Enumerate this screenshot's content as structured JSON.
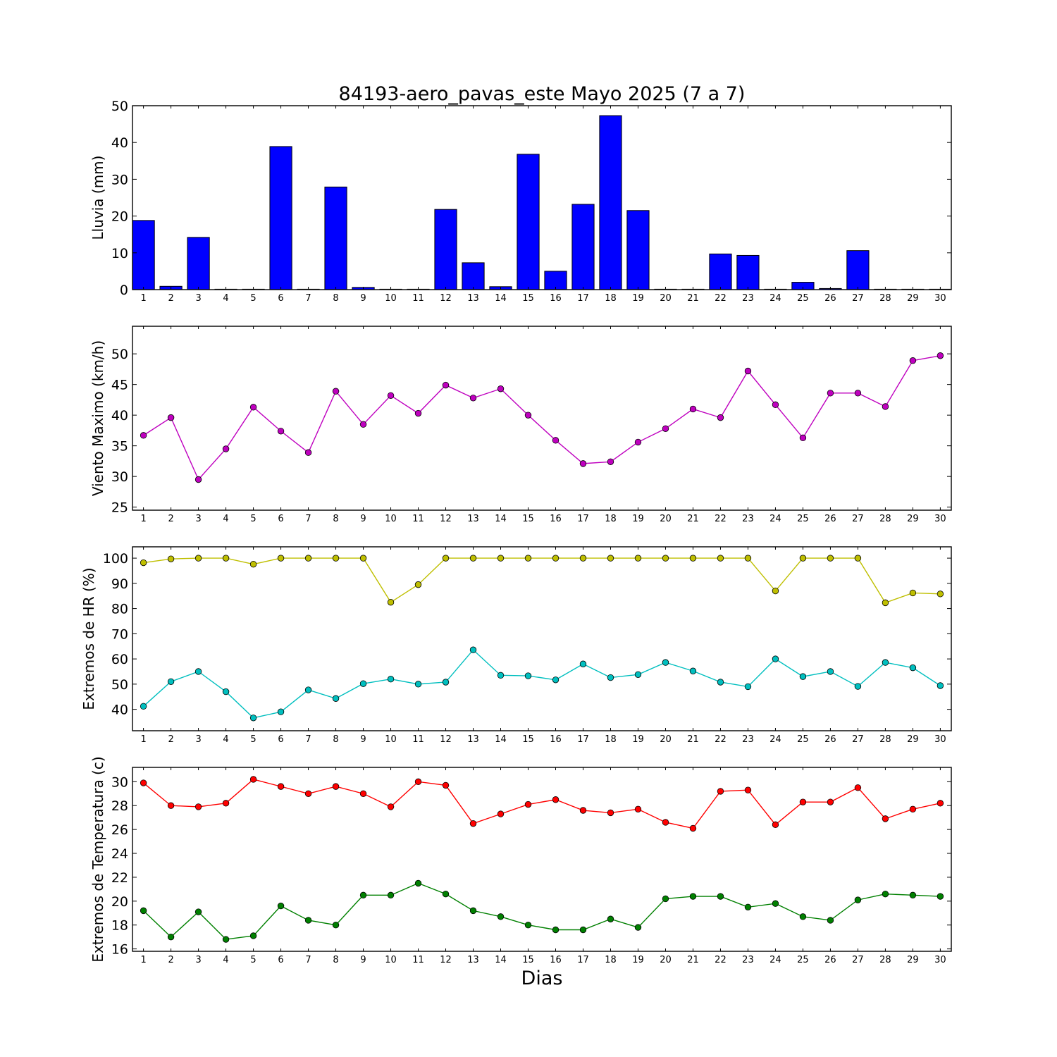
{
  "figure": {
    "title": "84193-aero_pavas_este Mayo 2025  (7 a 7)",
    "xlabel": "Dias"
  },
  "chart_data": [
    {
      "type": "bar",
      "ylabel": "Lluvia (mm)",
      "ylim": [
        0,
        50
      ],
      "yticks": [
        0,
        10,
        20,
        30,
        40,
        50
      ],
      "xlim": [
        0.6,
        30.4
      ],
      "x": [
        1,
        2,
        3,
        4,
        5,
        6,
        7,
        8,
        9,
        10,
        11,
        12,
        13,
        14,
        15,
        16,
        17,
        18,
        19,
        20,
        21,
        22,
        23,
        24,
        25,
        26,
        27,
        28,
        29,
        30
      ],
      "series": [
        {
          "color": "#0000ff",
          "values": [
            18.8,
            0.9,
            14.2,
            0.0,
            0.0,
            38.9,
            0.1,
            27.9,
            0.6,
            0.0,
            0.0,
            21.8,
            7.3,
            0.8,
            36.8,
            5.0,
            23.2,
            47.3,
            21.5,
            0.0,
            0.0,
            9.7,
            9.3,
            0.0,
            2.0,
            0.3,
            10.6,
            0.0,
            0.0,
            0.0
          ]
        }
      ]
    },
    {
      "type": "line",
      "ylabel": "Viento Maximo (km/h)",
      "ylim": [
        24.5,
        54.5
      ],
      "yticks": [
        25,
        30,
        35,
        40,
        45,
        50
      ],
      "xlim": [
        0.6,
        30.4
      ],
      "x": [
        1,
        2,
        3,
        4,
        5,
        6,
        7,
        8,
        9,
        10,
        11,
        12,
        13,
        14,
        15,
        16,
        17,
        18,
        19,
        20,
        21,
        22,
        23,
        24,
        25,
        26,
        27,
        28,
        29,
        30
      ],
      "series": [
        {
          "color": "#bf00bf",
          "values": [
            36.7,
            39.6,
            29.5,
            34.5,
            41.3,
            37.4,
            33.9,
            43.9,
            38.5,
            43.2,
            40.3,
            44.9,
            42.8,
            44.3,
            40.0,
            35.9,
            32.1,
            32.4,
            35.6,
            37.8,
            41.0,
            39.6,
            47.2,
            41.7,
            36.3,
            43.6,
            43.6,
            41.4,
            48.9,
            49.7
          ]
        }
      ]
    },
    {
      "type": "line",
      "ylabel": "Extremos de HR (%)",
      "ylim": [
        31.5,
        104.5
      ],
      "yticks": [
        40,
        50,
        60,
        70,
        80,
        90,
        100
      ],
      "xlim": [
        0.6,
        30.4
      ],
      "x": [
        1,
        2,
        3,
        4,
        5,
        6,
        7,
        8,
        9,
        10,
        11,
        12,
        13,
        14,
        15,
        16,
        17,
        18,
        19,
        20,
        21,
        22,
        23,
        24,
        25,
        26,
        27,
        28,
        29,
        30
      ],
      "series": [
        {
          "color": "#bfbf00",
          "values": [
            98.2,
            99.7,
            100,
            100,
            97.6,
            100,
            100,
            100,
            100,
            82.5,
            89.5,
            100,
            100,
            100,
            100,
            100,
            100,
            100,
            100,
            100,
            100,
            100,
            100,
            87.0,
            100,
            100,
            100,
            82.3,
            86.2,
            85.8
          ]
        },
        {
          "color": "#00bfbf",
          "values": [
            41.2,
            51.0,
            55.0,
            47.0,
            36.6,
            39.0,
            47.7,
            44.3,
            50.2,
            52.0,
            50.0,
            50.8,
            63.6,
            53.5,
            53.3,
            51.7,
            58.0,
            52.6,
            53.8,
            58.6,
            55.2,
            50.8,
            49.0,
            60.0,
            53.0,
            55.0,
            49.1,
            58.6,
            56.5,
            49.4
          ]
        }
      ]
    },
    {
      "type": "line",
      "ylabel": "Extremos de Temperatura (c)",
      "ylim": [
        15.8,
        31.2
      ],
      "yticks": [
        16,
        18,
        20,
        22,
        24,
        26,
        28,
        30
      ],
      "xlim": [
        0.6,
        30.4
      ],
      "x": [
        1,
        2,
        3,
        4,
        5,
        6,
        7,
        8,
        9,
        10,
        11,
        12,
        13,
        14,
        15,
        16,
        17,
        18,
        19,
        20,
        21,
        22,
        23,
        24,
        25,
        26,
        27,
        28,
        29,
        30
      ],
      "series": [
        {
          "color": "#ff0000",
          "values": [
            29.9,
            28.0,
            27.9,
            28.2,
            30.2,
            29.6,
            29.0,
            29.6,
            29.0,
            27.9,
            30.0,
            29.7,
            26.5,
            27.3,
            28.1,
            28.5,
            27.6,
            27.4,
            27.7,
            26.6,
            26.1,
            29.2,
            29.3,
            26.4,
            28.3,
            28.3,
            29.5,
            26.9,
            27.7,
            28.2
          ]
        },
        {
          "color": "#008000",
          "values": [
            19.2,
            17.0,
            19.1,
            16.8,
            17.1,
            19.6,
            18.4,
            18.0,
            20.5,
            20.5,
            21.5,
            20.6,
            19.2,
            18.7,
            18.0,
            17.6,
            17.6,
            18.5,
            17.8,
            20.2,
            20.4,
            20.4,
            19.5,
            19.8,
            18.7,
            18.4,
            20.1,
            20.6,
            20.5,
            20.4
          ]
        }
      ]
    }
  ]
}
